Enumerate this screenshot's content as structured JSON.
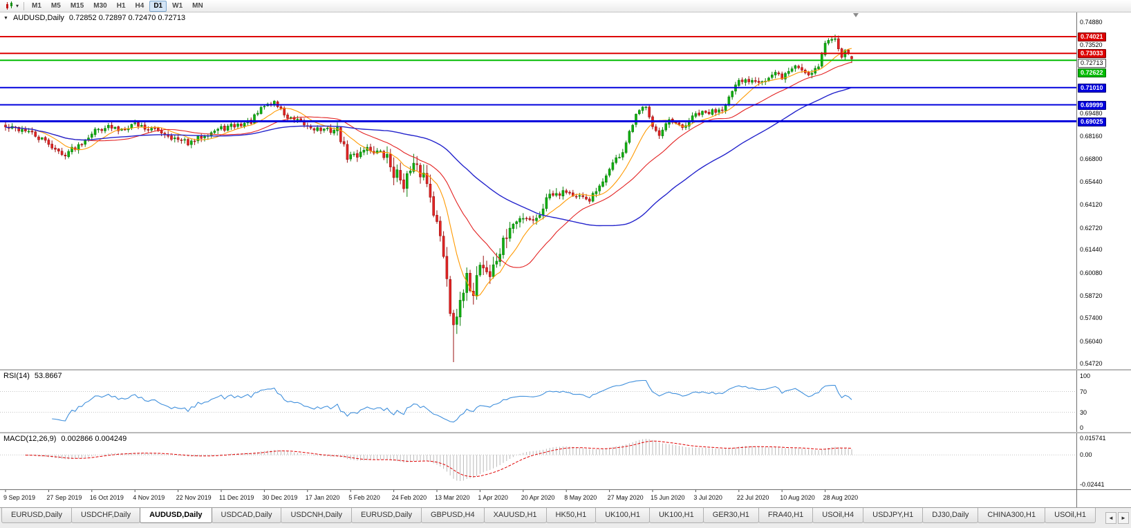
{
  "toolbar": {
    "chart_menu_icon": "candlestick-chart-icon",
    "timeframes": [
      "M1",
      "M5",
      "M15",
      "M30",
      "H1",
      "H4",
      "D1",
      "W1",
      "MN"
    ],
    "active_timeframe": "D1"
  },
  "price_pane": {
    "collapse_icon": "▼",
    "symbol_period": "AUDUSD,Daily",
    "ohlc_text": "0.72852 0.72897 0.72470 0.72713"
  },
  "rsi_pane": {
    "name": "RSI(14)",
    "value": "53.8667"
  },
  "macd_pane": {
    "name": "MACD(12,26,9)",
    "values": "0.002866 0.004249"
  },
  "tabs": {
    "scroll_left": "◄",
    "scroll_right": "►",
    "items": [
      {
        "label": "EURUSD,Daily"
      },
      {
        "label": "USDCHF,Daily"
      },
      {
        "label": "AUDUSD,Daily",
        "active": true
      },
      {
        "label": "USDCAD,Daily"
      },
      {
        "label": "USDCNH,Daily"
      },
      {
        "label": "EURUSD,Daily"
      },
      {
        "label": "GBPUSD,H4"
      },
      {
        "label": "XAUUSD,H1"
      },
      {
        "label": "HK50,H1"
      },
      {
        "label": "UK100,H1"
      },
      {
        "label": "UK100,H1"
      },
      {
        "label": "GER30,H1"
      },
      {
        "label": "FRA40,H1"
      },
      {
        "label": "USOil,H4"
      },
      {
        "label": "USDJPY,H1"
      },
      {
        "label": "DJ30,Daily"
      },
      {
        "label": "CHINA300,H1"
      },
      {
        "label": "USOil,H1"
      }
    ]
  },
  "chart_data": {
    "type": "candlestick",
    "symbol": "AUDUSD",
    "period": "Daily",
    "today_ohlc": {
      "open": 0.72852,
      "high": 0.72897,
      "low": 0.7247,
      "close": 0.72713
    },
    "y_axis": {
      "max": 0.7488,
      "min": 0.5472,
      "plain_labels": [
        0.7488,
        0.7352,
        0.6948,
        0.6816,
        0.668,
        0.6544,
        0.6412,
        0.6272,
        0.6144,
        0.6008,
        0.5872,
        0.574,
        0.5604,
        0.5472
      ]
    },
    "price_tags": [
      {
        "value": 0.74021,
        "label": "0.74021",
        "color": "#dd0000",
        "text": "#fff",
        "line_width": 2
      },
      {
        "value": 0.73033,
        "label": "0.73033",
        "color": "#dd0000",
        "text": "#fff",
        "line_width": 2
      },
      {
        "value": 0.72713,
        "label": "0.72713",
        "color": "#ffffff",
        "text": "#000",
        "line_width": 0,
        "current": true
      },
      {
        "value": 0.72622,
        "label": "0.72622",
        "color": "#00bb00",
        "text": "#fff",
        "line_width": 2
      },
      {
        "value": 0.7101,
        "label": "0.71010",
        "color": "#0000dd",
        "text": "#fff",
        "line_width": 2
      },
      {
        "value": 0.69999,
        "label": "0.69999",
        "color": "#0000dd",
        "text": "#fff",
        "line_width": 2
      },
      {
        "value": 0.69025,
        "label": "0.69025",
        "color": "#0000dd",
        "text": "#fff",
        "line_width": 3
      }
    ],
    "x_axis": {
      "candles_per_label": 13,
      "labels": [
        "9 Sep 2019",
        "27 Sep 2019",
        "16 Oct 2019",
        "4 Nov 2019",
        "22 Nov 2019",
        "11 Dec 2019",
        "30 Dec 2019",
        "17 Jan 2020",
        "5 Feb 2020",
        "24 Feb 2020",
        "13 Mar 2020",
        "1 Apr 2020",
        "20 Apr 2020",
        "8 May 2020",
        "27 May 2020",
        "15 Jun 2020",
        "3 Jul 2020",
        "22 Jul 2020",
        "10 Aug 2020",
        "28 Aug 2020"
      ]
    },
    "candles": {
      "count": 256,
      "seed": 42,
      "up_color": "#0a7d0a",
      "up_fill": "#10b010",
      "down_color": "#9a1010",
      "down_fill": "#e32424",
      "close_keypoints": [
        [
          0,
          0.6865
        ],
        [
          6,
          0.6852
        ],
        [
          10,
          0.6802
        ],
        [
          13,
          0.6772
        ],
        [
          17,
          0.6702
        ],
        [
          22,
          0.6762
        ],
        [
          26,
          0.6838
        ],
        [
          30,
          0.6872
        ],
        [
          34,
          0.6852
        ],
        [
          39,
          0.689
        ],
        [
          43,
          0.6857
        ],
        [
          47,
          0.6842
        ],
        [
          52,
          0.6788
        ],
        [
          56,
          0.6772
        ],
        [
          60,
          0.6828
        ],
        [
          65,
          0.6858
        ],
        [
          70,
          0.688
        ],
        [
          74,
          0.6902
        ],
        [
          78,
          0.6993
        ],
        [
          81,
          0.7018
        ],
        [
          85,
          0.6922
        ],
        [
          91,
          0.6875
        ],
        [
          96,
          0.6847
        ],
        [
          100,
          0.6852
        ],
        [
          103,
          0.6692
        ],
        [
          106,
          0.6703
        ],
        [
          108,
          0.6748
        ],
        [
          112,
          0.6722
        ],
        [
          115,
          0.6682
        ],
        [
          117,
          0.6602
        ],
        [
          120,
          0.6548
        ],
        [
          123,
          0.6622
        ],
        [
          126,
          0.6588
        ],
        [
          128,
          0.6482
        ],
        [
          130,
          0.6292
        ],
        [
          132,
          0.6122
        ],
        [
          133,
          0.5992
        ],
        [
          134,
          0.5782
        ],
        [
          135,
          0.5742
        ],
        [
          137,
          0.5802
        ],
        [
          139,
          0.5962
        ],
        [
          141,
          0.5902
        ],
        [
          143,
          0.6072
        ],
        [
          146,
          0.5992
        ],
        [
          149,
          0.6132
        ],
        [
          152,
          0.6272
        ],
        [
          156,
          0.6342
        ],
        [
          160,
          0.6322
        ],
        [
          164,
          0.6482
        ],
        [
          169,
          0.6492
        ],
        [
          172,
          0.6452
        ],
        [
          176,
          0.6442
        ],
        [
          180,
          0.6532
        ],
        [
          182,
          0.6632
        ],
        [
          186,
          0.6722
        ],
        [
          190,
          0.6932
        ],
        [
          193,
          0.7002
        ],
        [
          195,
          0.6882
        ],
        [
          197,
          0.6812
        ],
        [
          200,
          0.6902
        ],
        [
          204,
          0.6862
        ],
        [
          208,
          0.6942
        ],
        [
          212,
          0.6952
        ],
        [
          216,
          0.6982
        ],
        [
          221,
          0.7132
        ],
        [
          225,
          0.7152
        ],
        [
          229,
          0.7142
        ],
        [
          232,
          0.7182
        ],
        [
          234,
          0.7162
        ],
        [
          238,
          0.7232
        ],
        [
          242,
          0.7182
        ],
        [
          245,
          0.7232
        ],
        [
          247,
          0.7362
        ],
        [
          250,
          0.7402
        ],
        [
          252,
          0.7292
        ],
        [
          254,
          0.7322
        ],
        [
          255,
          0.72713
        ]
      ],
      "extremes": {
        "crash_low_index": 135,
        "crash_low": 0.548,
        "peak_high_index": 250,
        "peak_high": 0.7414
      },
      "volatility_zones": [
        {
          "from": 100,
          "to": 114,
          "factor": 1.4
        },
        {
          "from": 115,
          "to": 152,
          "factor": 2.6
        },
        {
          "from": 153,
          "to": 168,
          "factor": 1.5
        }
      ]
    },
    "moving_averages": [
      {
        "period": 10,
        "color": "#ff9900",
        "width": 1.1
      },
      {
        "period": 25,
        "color": "#e32222",
        "width": 1.1
      },
      {
        "period": 60,
        "color": "#2323cc",
        "width": 1.4
      }
    ],
    "rsi": {
      "period": 14,
      "current": "53.8667",
      "levels": [
        70,
        30
      ],
      "axis_labels": [
        "100",
        "70",
        "30",
        "0"
      ],
      "line_color": "#3f8fdc"
    },
    "macd": {
      "fast": 12,
      "slow": 26,
      "signal_period": 9,
      "macd_value": "0.002866",
      "signal_value": "0.004249",
      "axis_labels": {
        "top": "0.015741",
        "zero": "0.00",
        "bottom": "-0.02441"
      },
      "histogram_color": "#b9b9b9",
      "signal_color": "#e00000"
    }
  }
}
